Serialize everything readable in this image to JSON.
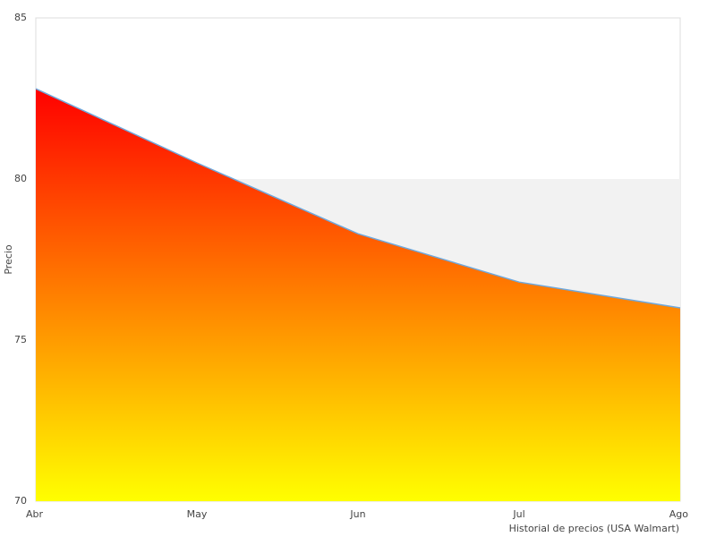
{
  "chart_data": {
    "type": "area",
    "x_label": "Historial de precios (USA Walmart)",
    "y_label": "Precio",
    "categories": [
      "Abr",
      "May",
      "Jun",
      "Jul",
      "Ago"
    ],
    "series": [
      {
        "name": null,
        "color": "#6fa8dc",
        "values": [
          82.8,
          80.5,
          78.3,
          76.8,
          76.0
        ]
      }
    ],
    "fill_gradient": [
      "#ff0000",
      "#ffff00"
    ],
    "ylim": [
      70,
      85
    ],
    "yticks": [
      70,
      75,
      80,
      85
    ],
    "grid_bands": true
  }
}
